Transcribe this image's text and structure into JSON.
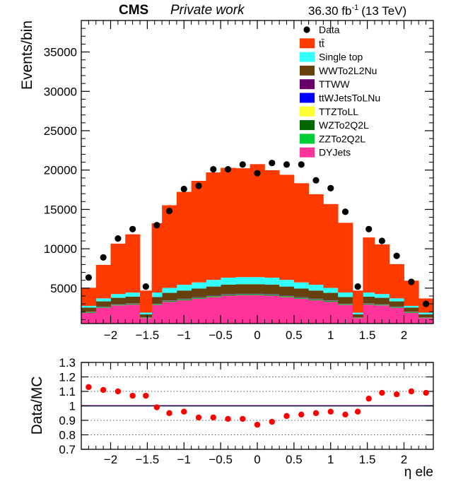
{
  "header": {
    "experiment": "CMS",
    "label": "Private work",
    "lumi": "36.30 fb",
    "lumi_sup": "-1",
    "energy": "(13 TeV)"
  },
  "chart_data": [
    {
      "type": "bar",
      "stacked": true,
      "ylabel": "Events/bin",
      "xlim": [
        -2.4,
        2.4
      ],
      "ylim": [
        500,
        39000
      ],
      "yticks": [
        5000,
        10000,
        15000,
        20000,
        25000,
        30000,
        35000
      ],
      "ytick_labels": [
        "5000",
        "10000",
        "15000",
        "20000",
        "25000",
        "30000",
        "35000"
      ],
      "xticks": [
        -2,
        -1.5,
        -1,
        -0.5,
        0,
        0.5,
        1,
        1.5,
        2
      ],
      "xtick_labels": [
        "−2",
        "−1.5",
        "−1",
        "−0.5",
        "0",
        "0.5",
        "1",
        "1.5",
        "2"
      ],
      "bin_edges": [
        -2.4,
        -2.2,
        -2.0,
        -1.8,
        -1.6,
        -1.44,
        -1.3,
        -1.1,
        -0.9,
        -0.7,
        -0.5,
        -0.3,
        -0.1,
        0.1,
        0.3,
        0.5,
        0.7,
        0.9,
        1.1,
        1.3,
        1.44,
        1.6,
        1.8,
        2.0,
        2.2,
        2.4
      ],
      "legend_position": "top-right",
      "legend": [
        {
          "label": "Data",
          "kind": "marker",
          "color": "#000000"
        },
        {
          "label": "tt̄",
          "kind": "fill",
          "color": "#ff3a00"
        },
        {
          "label": "Single top",
          "kind": "fill",
          "color": "#33ffff"
        },
        {
          "label": "WWTo2L2Nu",
          "kind": "fill",
          "color": "#66400d"
        },
        {
          "label": "TTWW",
          "kind": "fill",
          "color": "#660066"
        },
        {
          "label": "ttWJetsToLNu",
          "kind": "fill",
          "color": "#0000ff"
        },
        {
          "label": "TTZToLL",
          "kind": "fill",
          "color": "#ffff33"
        },
        {
          "label": "WZTo2Q2L",
          "kind": "fill",
          "color": "#006600"
        },
        {
          "label": "ZZTo2Q2L",
          "kind": "fill",
          "color": "#00cc33"
        },
        {
          "label": "DYJets",
          "kind": "fill",
          "color": "#ff3399"
        }
      ],
      "series": [
        {
          "name": "DYJets",
          "color": "#ff3399",
          "values": [
            1850,
            2500,
            2800,
            2900,
            1200,
            2850,
            3250,
            3450,
            3650,
            3850,
            4050,
            4100,
            4100,
            4050,
            3850,
            3650,
            3450,
            3250,
            2850,
            1200,
            2900,
            2800,
            2500,
            1850,
            1200
          ]
        },
        {
          "name": "ZZTo2Q2L",
          "color": "#00cc33",
          "values": [
            50,
            50,
            50,
            50,
            30,
            50,
            60,
            60,
            60,
            60,
            60,
            60,
            60,
            60,
            60,
            60,
            60,
            60,
            50,
            30,
            50,
            50,
            50,
            50,
            30
          ]
        },
        {
          "name": "WZTo2Q2L",
          "color": "#006600",
          "values": [
            60,
            60,
            60,
            60,
            30,
            60,
            70,
            70,
            70,
            70,
            70,
            70,
            70,
            70,
            70,
            70,
            70,
            70,
            60,
            30,
            60,
            60,
            60,
            60,
            30
          ]
        },
        {
          "name": "TTZToLL",
          "color": "#ffff33",
          "values": [
            20,
            20,
            20,
            20,
            10,
            20,
            20,
            20,
            20,
            20,
            20,
            20,
            20,
            20,
            20,
            20,
            20,
            20,
            20,
            10,
            20,
            20,
            20,
            20,
            10
          ]
        },
        {
          "name": "ttWJetsToLNu",
          "color": "#0000ff",
          "values": [
            20,
            20,
            20,
            20,
            10,
            20,
            30,
            30,
            30,
            30,
            30,
            30,
            30,
            30,
            30,
            30,
            30,
            30,
            20,
            10,
            20,
            20,
            20,
            20,
            10
          ]
        },
        {
          "name": "TTWW",
          "color": "#660066",
          "values": [
            20,
            20,
            20,
            20,
            10,
            20,
            20,
            20,
            20,
            20,
            20,
            20,
            20,
            20,
            20,
            20,
            20,
            20,
            20,
            10,
            20,
            20,
            20,
            20,
            10
          ]
        },
        {
          "name": "WWTo2L2Nu",
          "color": "#66400d",
          "values": [
            500,
            650,
            800,
            850,
            380,
            850,
            950,
            1050,
            1100,
            1150,
            1200,
            1200,
            1200,
            1200,
            1150,
            1100,
            1050,
            950,
            850,
            380,
            850,
            800,
            650,
            500,
            380
          ]
        },
        {
          "name": "Single top",
          "color": "#33ffff",
          "values": [
            230,
            380,
            480,
            520,
            220,
            580,
            630,
            730,
            780,
            850,
            880,
            900,
            900,
            880,
            850,
            780,
            730,
            630,
            580,
            220,
            520,
            480,
            380,
            230,
            220
          ]
        },
        {
          "name": "tt̄",
          "color": "#ff3a00",
          "values": [
            2300,
            4250,
            6400,
            7400,
            2800,
            8800,
            10500,
            11800,
            12900,
            13650,
            13950,
            13830,
            14350,
            13650,
            13350,
            12600,
            11500,
            10650,
            8850,
            2800,
            7000,
            6300,
            4350,
            3200,
            1800
          ]
        }
      ],
      "data": {
        "name": "Data",
        "color": "#000000",
        "values": [
          6350,
          8900,
          11300,
          12500,
          5200,
          13000,
          14800,
          17600,
          18000,
          20100,
          20100,
          20700,
          19600,
          20900,
          20700,
          20700,
          18700,
          17700,
          14700,
          5200,
          12500,
          11000,
          9100,
          5800,
          3000
        ]
      }
    },
    {
      "type": "scatter",
      "ylabel": "Data/MC",
      "xlabel": "η ele",
      "xlim": [
        -2.4,
        2.4
      ],
      "ylim": [
        0.7,
        1.3
      ],
      "yticks": [
        0.7,
        0.8,
        0.9,
        1.0,
        1.1,
        1.2,
        1.3
      ],
      "ytick_labels": [
        "0.7",
        "0.8",
        "0.9",
        "1",
        "1.1",
        "1.2",
        "1.3"
      ],
      "xticks": [
        -2,
        -1.5,
        -1,
        -0.5,
        0,
        0.5,
        1,
        1.5,
        2
      ],
      "xtick_labels": [
        "−2",
        "−1.5",
        "−1",
        "−0.5",
        "0",
        "0.5",
        "1",
        "1.5",
        "2"
      ],
      "grid": true,
      "reference_line": 1.0,
      "x": [
        -2.3,
        -2.1,
        -1.9,
        -1.7,
        -1.52,
        -1.37,
        -1.2,
        -1.0,
        -0.8,
        -0.6,
        -0.4,
        -0.2,
        0.0,
        0.2,
        0.4,
        0.6,
        0.8,
        1.0,
        1.2,
        1.37,
        1.52,
        1.7,
        1.9,
        2.1,
        2.3
      ],
      "y": [
        1.13,
        1.11,
        1.1,
        1.07,
        1.07,
        0.99,
        0.95,
        0.96,
        0.92,
        0.92,
        0.91,
        0.91,
        0.87,
        0.89,
        0.93,
        0.94,
        0.95,
        0.96,
        0.94,
        0.96,
        1.05,
        1.09,
        1.08,
        1.1,
        1.09
      ],
      "color": "#ff0000"
    }
  ]
}
